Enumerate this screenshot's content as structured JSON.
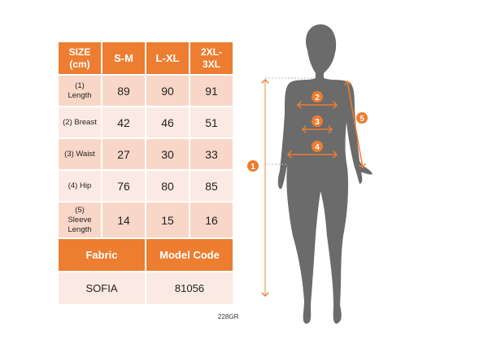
{
  "table": {
    "headers": [
      "SIZE\n(cm)",
      "S-M",
      "L-XL",
      "2XL-\n3XL"
    ],
    "rows": [
      {
        "label": "(1)\nLength",
        "values": [
          "89",
          "90",
          "91"
        ]
      },
      {
        "label": "(2) Breast",
        "values": [
          "42",
          "46",
          "51"
        ]
      },
      {
        "label": "(3) Waist",
        "values": [
          "27",
          "30",
          "33"
        ]
      },
      {
        "label": "(4) Hip",
        "values": [
          "76",
          "80",
          "85"
        ]
      },
      {
        "label": "(5)\nSleeve\nLength",
        "values": [
          "14",
          "15",
          "16"
        ]
      }
    ],
    "fabric_header": "Fabric",
    "model_code_header": "Model Code",
    "fabric_value": "SOFIA",
    "model_code_value": "81056"
  },
  "product_code": "228GR",
  "figure": {
    "markers": [
      "1",
      "2",
      "3",
      "4",
      "5"
    ]
  },
  "colors": {
    "accent": "#ED7D31",
    "row_dark": "#F8D7C9",
    "row_light": "#FBEAE3",
    "silhouette": "#6B6B6B"
  }
}
